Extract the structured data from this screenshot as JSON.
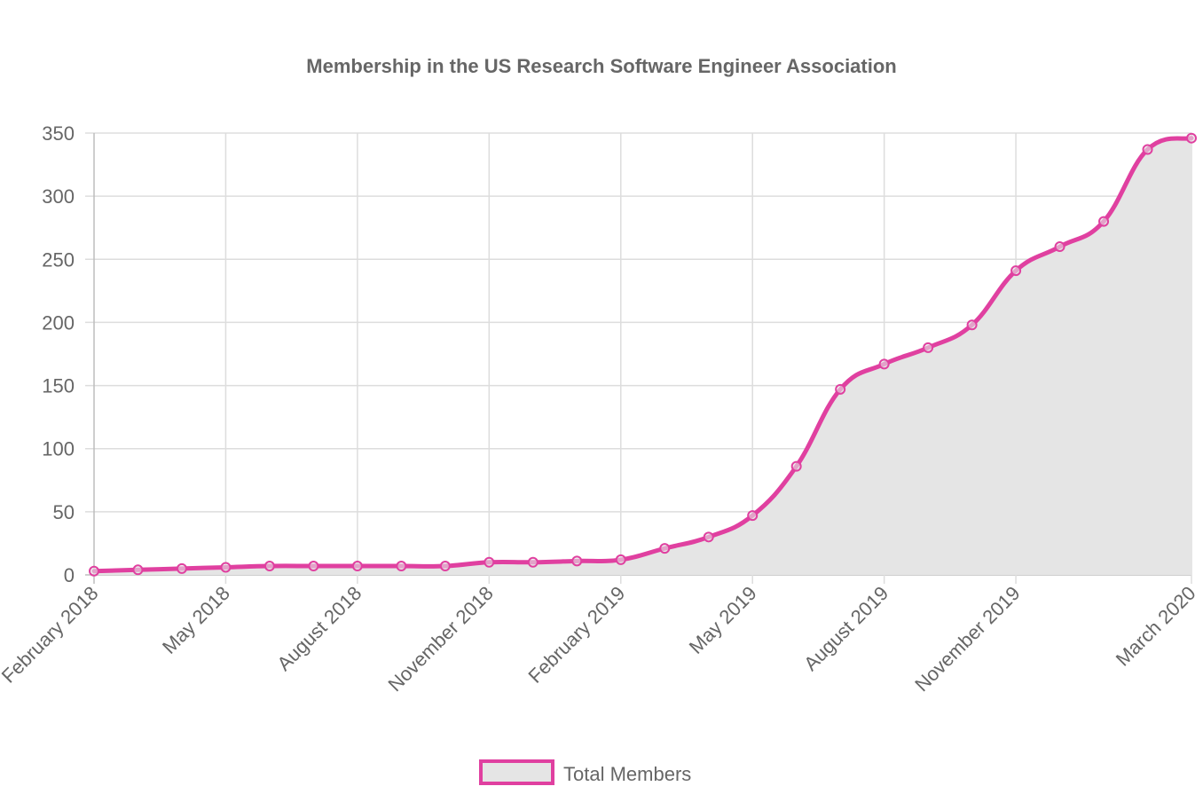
{
  "chart_data": {
    "type": "line",
    "title": "Membership in the US Research Software Engineer Association",
    "x": [
      "2018-02",
      "2018-03",
      "2018-04",
      "2018-05",
      "2018-06",
      "2018-07",
      "2018-08",
      "2018-09",
      "2018-10",
      "2018-11",
      "2018-12",
      "2019-01",
      "2019-02",
      "2019-03",
      "2019-04",
      "2019-05",
      "2019-06",
      "2019-07",
      "2019-08",
      "2019-09",
      "2019-10",
      "2019-11",
      "2019-12",
      "2020-01",
      "2020-02",
      "2020-03"
    ],
    "x_tick_labels": [
      "February 2018",
      "May 2018",
      "August 2018",
      "November 2018",
      "February 2019",
      "May 2019",
      "August 2019",
      "November 2019",
      "March 2020"
    ],
    "x_tick_dates": [
      "2018-02",
      "2018-05",
      "2018-08",
      "2018-11",
      "2019-02",
      "2019-05",
      "2019-08",
      "2019-11",
      "2020-03"
    ],
    "series": [
      {
        "name": "Total Members",
        "values": [
          3,
          4,
          5,
          6,
          7,
          7,
          7,
          7,
          7,
          10,
          10,
          11,
          12,
          21,
          30,
          47,
          86,
          147,
          167,
          180,
          198,
          241,
          260,
          280,
          337,
          346
        ],
        "line_color": "#e040a0",
        "fill_color": "#e5e5e5"
      }
    ],
    "ylim": [
      0,
      350
    ],
    "y_ticks": [
      0,
      50,
      100,
      150,
      200,
      250,
      300,
      350
    ],
    "grid": true,
    "legend_position": "bottom"
  }
}
